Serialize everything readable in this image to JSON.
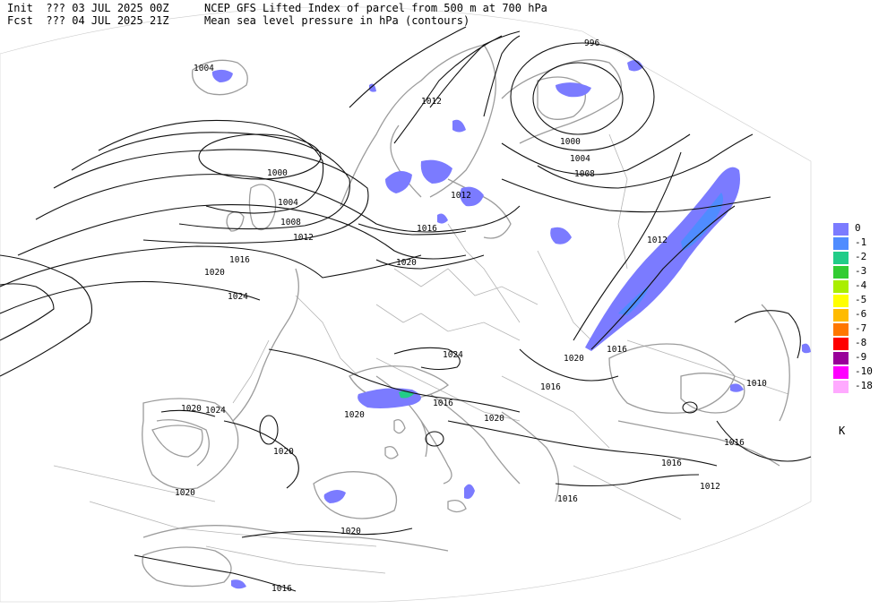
{
  "header": {
    "init_label": "Init",
    "init_value": "??? 03 JUL 2025 00Z",
    "fcst_label": "Fcst",
    "fcst_value": "??? 04 JUL 2025 21Z",
    "title": "NCEP GFS Lifted Index of parcel from 500 m at 700 hPa",
    "subtitle": "Mean sea level pressure in hPa (contours)"
  },
  "legend": {
    "unit": "K",
    "entries": [
      {
        "label": "0",
        "color": "#7b7bff"
      },
      {
        "label": "-1",
        "color": "#4f8cff"
      },
      {
        "label": "-2",
        "color": "#22cc88"
      },
      {
        "label": "-3",
        "color": "#33cc33"
      },
      {
        "label": "-4",
        "color": "#aaee00"
      },
      {
        "label": "-5",
        "color": "#ffff00"
      },
      {
        "label": "-6",
        "color": "#ffbb00"
      },
      {
        "label": "-7",
        "color": "#ff7700"
      },
      {
        "label": "-8",
        "color": "#ff0000"
      },
      {
        "label": "-9",
        "color": "#990099"
      },
      {
        "label": "-10",
        "color": "#ff00ff"
      },
      {
        "label": "-18",
        "color": "#ffaaff"
      }
    ]
  },
  "isobar_labels": [
    "996",
    "1000",
    "1004",
    "1008",
    "1012",
    "1016",
    "1020",
    "1024"
  ],
  "map_labels": {
    "l_996": "996",
    "l_1004_ice": "1004",
    "l_1000_a": "1000",
    "l_1004_a": "1004",
    "l_1008_a": "1008",
    "l_1012_a": "1012",
    "l_1016_a": "1016",
    "l_1020_a": "1020",
    "l_1024_a": "1024",
    "l_1012_b": "1012",
    "l_1012_c": "1012",
    "l_1016_b": "1016",
    "l_1020_b": "1020",
    "l_1000_b": "1000",
    "l_1004_b": "1004",
    "l_1008_b": "1008",
    "l_1012_d": "1012",
    "l_1024_b": "1024",
    "l_1020_c": "1020",
    "l_1016_c": "1016",
    "l_1016_d": "1016",
    "l_1016_e": "1016",
    "l_1020_d": "1020",
    "l_1020_e": "1020",
    "l_1020_f": "1020",
    "l_1024_c": "1024",
    "l_1020_g": "1020",
    "l_1020_h": "1020",
    "l_1020_i": "1020",
    "l_1016_f": "1016",
    "l_1016_g": "1016",
    "l_1012_e": "1012",
    "l_1016_h": "1016",
    "l_1010": "1010",
    "l_1016_i": "1016",
    "l_1016_j": "1016",
    "l_1016_k": "1016"
  }
}
